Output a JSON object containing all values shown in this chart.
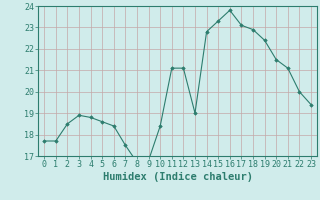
{
  "xlabel": "Humidex (Indice chaleur)",
  "ylabel": "",
  "x": [
    0,
    1,
    2,
    3,
    4,
    5,
    6,
    7,
    8,
    9,
    10,
    11,
    12,
    13,
    14,
    15,
    16,
    17,
    18,
    19,
    20,
    21,
    22,
    23
  ],
  "y": [
    17.7,
    17.7,
    18.5,
    18.9,
    18.8,
    18.6,
    18.4,
    17.5,
    16.7,
    16.8,
    18.4,
    21.1,
    21.1,
    19.0,
    22.8,
    23.3,
    23.8,
    23.1,
    22.9,
    22.4,
    21.5,
    21.1,
    20.0,
    19.4
  ],
  "line_color": "#2d7d6e",
  "bg_color": "#d0eceb",
  "grid_color": "#c4a8a8",
  "ylim": [
    17,
    24
  ],
  "yticks": [
    17,
    18,
    19,
    20,
    21,
    22,
    23,
    24
  ],
  "xlim": [
    -0.5,
    23.5
  ],
  "tick_fontsize": 6,
  "label_fontsize": 7.5
}
